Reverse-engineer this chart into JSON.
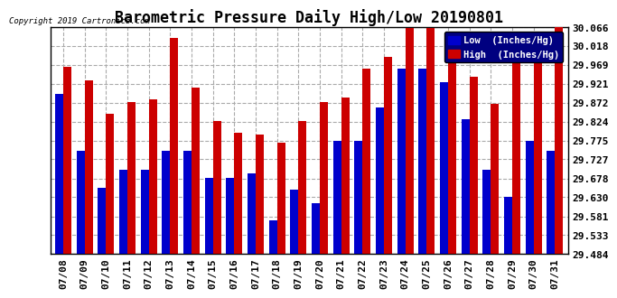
{
  "title": "Barometric Pressure Daily High/Low 20190801",
  "copyright": "Copyright 2019 Cartronics.com",
  "low_label": "Low  (Inches/Hg)",
  "high_label": "High  (Inches/Hg)",
  "dates": [
    "07/08",
    "07/09",
    "07/10",
    "07/11",
    "07/12",
    "07/13",
    "07/14",
    "07/15",
    "07/16",
    "07/17",
    "07/18",
    "07/19",
    "07/20",
    "07/21",
    "07/22",
    "07/23",
    "07/24",
    "07/25",
    "07/26",
    "07/27",
    "07/28",
    "07/29",
    "07/30",
    "07/31"
  ],
  "low_values": [
    29.896,
    29.75,
    29.655,
    29.7,
    29.7,
    29.75,
    29.75,
    29.68,
    29.68,
    29.69,
    29.57,
    29.65,
    29.615,
    29.775,
    29.775,
    29.86,
    29.96,
    29.96,
    29.925,
    29.83,
    29.7,
    29.63,
    29.775,
    29.75
  ],
  "high_values": [
    29.965,
    29.93,
    29.845,
    29.875,
    29.88,
    30.038,
    29.91,
    29.825,
    29.795,
    29.79,
    29.77,
    29.825,
    29.875,
    29.885,
    29.96,
    29.99,
    30.065,
    30.065,
    30.04,
    29.94,
    29.87,
    29.99,
    29.99,
    30.07
  ],
  "low_color": "#0000cc",
  "high_color": "#cc0000",
  "bg_color": "#ffffff",
  "grid_color": "#aaaaaa",
  "ymin": 29.484,
  "ymax": 30.066,
  "yticks": [
    29.484,
    29.533,
    29.581,
    29.63,
    29.678,
    29.727,
    29.775,
    29.824,
    29.872,
    29.921,
    29.969,
    30.018,
    30.066
  ],
  "title_fontsize": 12,
  "tick_fontsize": 8,
  "bar_width": 0.38
}
